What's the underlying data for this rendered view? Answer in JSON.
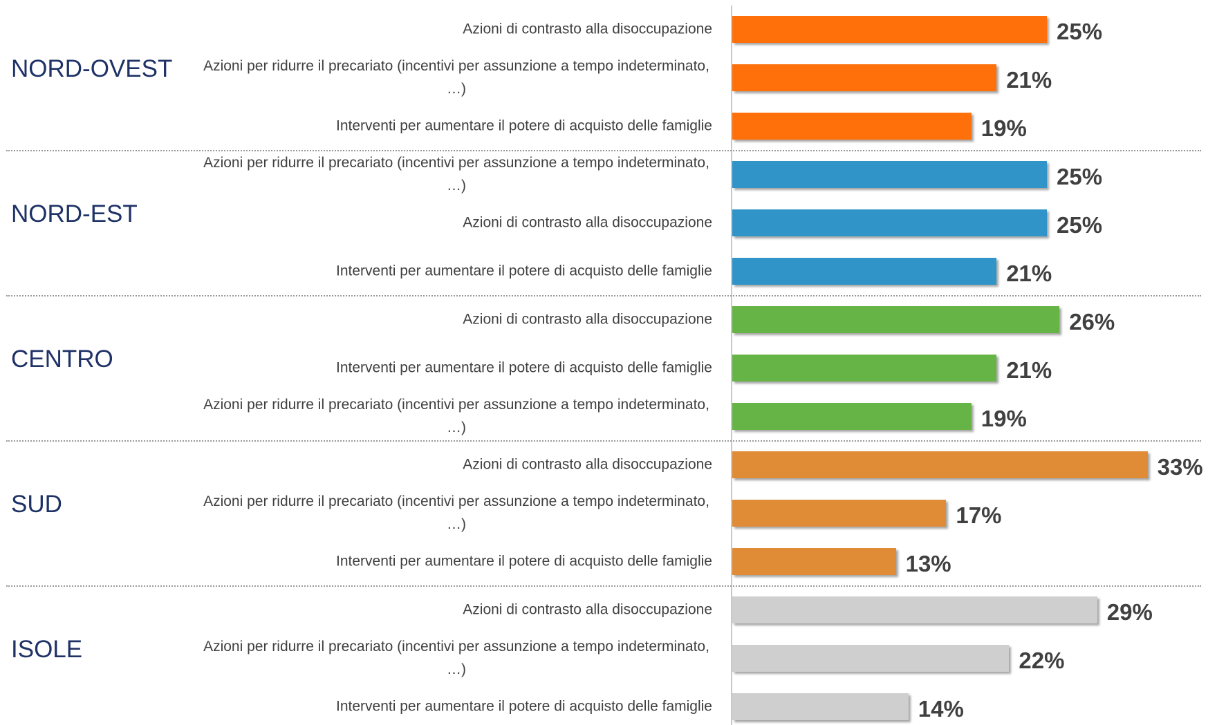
{
  "chart_data": {
    "type": "bar",
    "groups": [
      {
        "name": "NORD-OVEST",
        "color": "#ff6f0a",
        "categories": [
          "Azioni di contrasto alla disoccupazione",
          "Azioni per ridurre il precariato (incentivi per assunzione a tempo indeterminato, …)",
          "Interventi per aumentare il potere di acquisto delle famiglie"
        ],
        "values": [
          25,
          21,
          19
        ],
        "value_labels": [
          "25%",
          "21%",
          "19%"
        ]
      },
      {
        "name": "NORD-EST",
        "color": "#3094c8",
        "categories": [
          "Azioni per ridurre il precariato (incentivi per assunzione a tempo indeterminato, …)",
          "Azioni di contrasto alla disoccupazione",
          "Interventi per aumentare il potere di acquisto delle famiglie"
        ],
        "values": [
          25,
          25,
          21
        ],
        "value_labels": [
          "25%",
          "25%",
          "21%"
        ]
      },
      {
        "name": "CENTRO",
        "color": "#66b446",
        "categories": [
          "Azioni di contrasto alla disoccupazione",
          "Interventi per aumentare il potere di acquisto delle famiglie",
          "Azioni per ridurre il precariato (incentivi per assunzione a tempo indeterminato, …)"
        ],
        "values": [
          26,
          21,
          19
        ],
        "value_labels": [
          "26%",
          "21%",
          "19%"
        ]
      },
      {
        "name": "SUD",
        "color": "#e08c36",
        "categories": [
          "Azioni di contrasto alla disoccupazione",
          "Azioni per ridurre il precariato (incentivi per assunzione a tempo indeterminato, …)",
          "Interventi per aumentare il potere di acquisto delle famiglie"
        ],
        "values": [
          33,
          17,
          13
        ],
        "value_labels": [
          "33%",
          "17%",
          "13%"
        ]
      },
      {
        "name": "ISOLE",
        "color": "#d0cfd0",
        "categories": [
          "Azioni di contrasto alla disoccupazione",
          "Azioni per ridurre il precariato (incentivi per assunzione a tempo indeterminato, …)",
          "Interventi per aumentare il potere di acquisto delle famiglie"
        ],
        "values": [
          29,
          22,
          14
        ],
        "value_labels": [
          "29%",
          "22%",
          "14%"
        ]
      }
    ]
  }
}
